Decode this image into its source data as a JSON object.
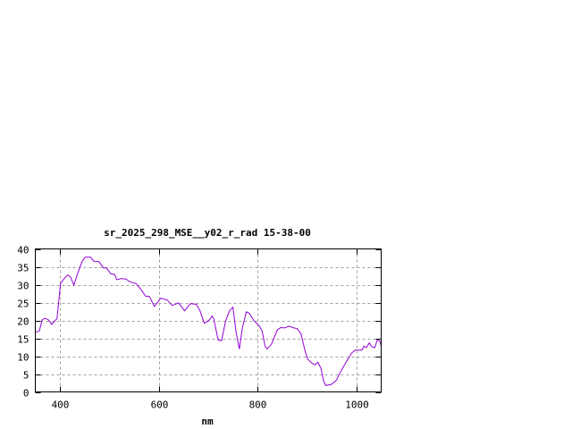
{
  "chart_data": {
    "type": "line",
    "title": "sr_2025_298_MSE__y02_r_rad 15-38-00",
    "xlabel": "nm",
    "ylabel": "",
    "xlim": [
      350,
      1050
    ],
    "ylim": [
      0,
      40
    ],
    "xticks": [
      400,
      600,
      800,
      1000
    ],
    "yticks": [
      0,
      5,
      10,
      15,
      20,
      25,
      30,
      35,
      40
    ],
    "grid": true,
    "colors": {
      "series": "#9400d3",
      "grid": "#a0a0a0",
      "axes": "#000000"
    },
    "series": [
      {
        "x": [
          350,
          358,
          364,
          370,
          377,
          383,
          391,
          394,
          401,
          409,
          415,
          421,
          428,
          436,
          445,
          451,
          462,
          468,
          473,
          479,
          488,
          494,
          503,
          510,
          515,
          524,
          533,
          542,
          554,
          563,
          573,
          581,
          591,
          604,
          617,
          627,
          640,
          652,
          664,
          676,
          683,
          692,
          702,
          708,
          711,
          720,
          727,
          735,
          743,
          750,
          756,
          763,
          769,
          777,
          783,
          792,
          804,
          809,
          815,
          819,
          828,
          840,
          847,
          855,
          863,
          871,
          880,
          888,
          895,
          901,
          910,
          916,
          922,
          928,
          934,
          938,
          949,
          959,
          970,
          979,
          990,
          997,
          1011,
          1015,
          1020,
          1026,
          1031,
          1037,
          1042,
          1047,
          1050
        ],
        "y": [
          16.7,
          17,
          20.2,
          20.6,
          20.1,
          18.9,
          20.1,
          20.5,
          30.3,
          31.8,
          32.7,
          32.2,
          29.9,
          33.2,
          36.6,
          37.7,
          37.7,
          36.6,
          36.5,
          36.4,
          34.7,
          34.7,
          33,
          32.9,
          31.4,
          31.7,
          31.6,
          30.8,
          30.3,
          28.8,
          26.8,
          26.7,
          23.9,
          26.2,
          25.7,
          24.2,
          24.9,
          22.7,
          24.7,
          24.5,
          22.8,
          19.2,
          20.1,
          21.2,
          20.5,
          14.5,
          14.3,
          19.8,
          22.7,
          23.7,
          17,
          12,
          17.8,
          22.4,
          22,
          20,
          18.3,
          17,
          12.8,
          12,
          13.4,
          17.4,
          18,
          17.9,
          18.4,
          18,
          17.7,
          16.2,
          12,
          9.2,
          8,
          7.6,
          8.3,
          6.6,
          2.8,
          1.8,
          2.1,
          3.2,
          6.2,
          8.3,
          10.8,
          11.7,
          11.7,
          12.8,
          12.4,
          13.7,
          12.6,
          12.4,
          14.5,
          14.3,
          12.8
        ]
      }
    ]
  }
}
